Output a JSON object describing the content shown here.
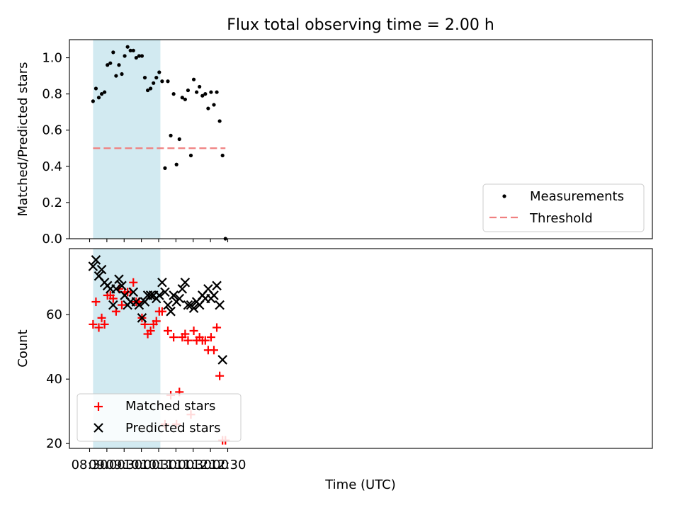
{
  "figure": {
    "title": "Flux total observing time = 2.00 h"
  },
  "chart_data": [
    {
      "type": "scatter",
      "title": "Flux total observing time = 2.00 h",
      "xlabel": "",
      "ylabel": "Matched/Predicted stars",
      "x_tick_labels": [],
      "y_ticks": [
        0.0,
        0.2,
        0.4,
        0.6,
        0.8,
        1.0
      ],
      "y_tick_labels": [
        "0.0",
        "0.2",
        "0.4",
        "0.6",
        "0.8",
        "1.0"
      ],
      "ylim": [
        0.0,
        1.1
      ],
      "shaded_region": {
        "start": "08:36",
        "end": "10:33",
        "color": "#add8e6"
      },
      "legend_position": "lower right",
      "series": [
        {
          "name": "Measurements",
          "marker": "dot",
          "color": "#000000",
          "x": [
            "08:36",
            "08:41",
            "08:46",
            "08:51",
            "08:56",
            "09:01",
            "09:06",
            "09:11",
            "09:16",
            "09:21",
            "09:26",
            "09:31",
            "09:36",
            "09:41",
            "09:46",
            "09:51",
            "09:56",
            "10:01",
            "10:06",
            "10:11",
            "10:16",
            "10:21",
            "10:26",
            "10:31",
            "10:36",
            "10:41",
            "10:46",
            "10:51",
            "10:56",
            "11:01",
            "11:06",
            "11:11",
            "11:16",
            "11:21",
            "11:26",
            "11:31",
            "11:36",
            "11:41",
            "11:46",
            "11:51",
            "11:56",
            "12:01",
            "12:06",
            "12:11",
            "12:16",
            "12:21",
            "12:26"
          ],
          "y": [
            0.76,
            0.83,
            0.78,
            0.8,
            0.81,
            0.96,
            0.97,
            1.03,
            0.9,
            0.96,
            0.91,
            1.01,
            1.06,
            1.04,
            1.04,
            1.0,
            1.01,
            1.01,
            0.89,
            0.82,
            0.83,
            0.86,
            0.89,
            0.92,
            0.87,
            0.39,
            0.87,
            0.57,
            0.8,
            0.41,
            0.55,
            0.78,
            0.77,
            0.82,
            0.46,
            0.88,
            0.81,
            0.84,
            0.79,
            0.8,
            0.72,
            0.81,
            0.74,
            0.81,
            0.65,
            0.46,
            0.0
          ]
        },
        {
          "name": "Threshold",
          "line": "dashed",
          "color": "#f08080",
          "x": [
            "08:36",
            "12:26"
          ],
          "y": [
            0.5,
            0.5
          ]
        }
      ]
    },
    {
      "type": "scatter",
      "title": "",
      "xlabel": "Time (UTC)",
      "ylabel": "Count",
      "x_tick_labels": [
        "08:30",
        "09:00",
        "09:30",
        "10:00",
        "10:30",
        "11:00",
        "11:30",
        "12:00",
        "12:30"
      ],
      "y_ticks": [
        20,
        40,
        60
      ],
      "y_tick_labels": [
        "20",
        "40",
        "60"
      ],
      "ylim": [
        18.5,
        80.5
      ],
      "shaded_region": {
        "start": "08:36",
        "end": "10:33",
        "color": "#add8e6"
      },
      "legend_position": "lower left",
      "series": [
        {
          "name": "Matched stars",
          "marker": "plus",
          "color": "#ff0000",
          "x": [
            "08:36",
            "08:41",
            "08:46",
            "08:51",
            "08:56",
            "09:01",
            "09:06",
            "09:11",
            "09:16",
            "09:21",
            "09:26",
            "09:31",
            "09:36",
            "09:41",
            "09:46",
            "09:51",
            "09:56",
            "10:01",
            "10:06",
            "10:11",
            "10:16",
            "10:21",
            "10:26",
            "10:31",
            "10:36",
            "10:41",
            "10:46",
            "10:51",
            "10:56",
            "11:01",
            "11:06",
            "11:11",
            "11:16",
            "11:21",
            "11:26",
            "11:31",
            "11:36",
            "11:41",
            "11:46",
            "11:51",
            "11:56",
            "12:01",
            "12:06",
            "12:11",
            "12:16",
            "12:21",
            "12:26"
          ],
          "y": [
            57,
            64,
            56,
            59,
            57,
            66,
            66,
            65,
            61,
            68,
            63,
            67,
            67,
            67,
            70,
            64,
            64,
            59,
            57,
            54,
            55,
            57,
            58,
            61,
            61,
            26,
            55,
            35,
            53,
            26,
            36,
            53,
            54,
            52,
            29,
            55,
            52,
            53,
            52,
            52,
            49,
            53,
            49,
            56,
            41,
            21,
            21
          ]
        },
        {
          "name": "Predicted stars",
          "marker": "x",
          "color": "#000000",
          "x": [
            "08:36",
            "08:41",
            "08:46",
            "08:51",
            "08:56",
            "09:01",
            "09:06",
            "09:11",
            "09:16",
            "09:21",
            "09:26",
            "09:31",
            "09:36",
            "09:41",
            "09:46",
            "09:51",
            "09:56",
            "10:01",
            "10:06",
            "10:11",
            "10:16",
            "10:21",
            "10:26",
            "10:31",
            "10:36",
            "10:41",
            "10:46",
            "10:51",
            "10:56",
            "11:01",
            "11:06",
            "11:11",
            "11:16",
            "11:21",
            "11:26",
            "11:31",
            "11:36",
            "11:41",
            "11:46",
            "11:51",
            "11:56",
            "12:01",
            "12:06",
            "12:11",
            "12:16",
            "12:21"
          ],
          "y": [
            75,
            77,
            72,
            74,
            70,
            69,
            68,
            63,
            68,
            71,
            69,
            66,
            63,
            64,
            67,
            64,
            63,
            59,
            64,
            66,
            66,
            66,
            65,
            66,
            70,
            67,
            63,
            61,
            66,
            64,
            65,
            68,
            70,
            63,
            63,
            62,
            64,
            63,
            66,
            65,
            68,
            65,
            66,
            69,
            63,
            46
          ]
        }
      ]
    }
  ]
}
